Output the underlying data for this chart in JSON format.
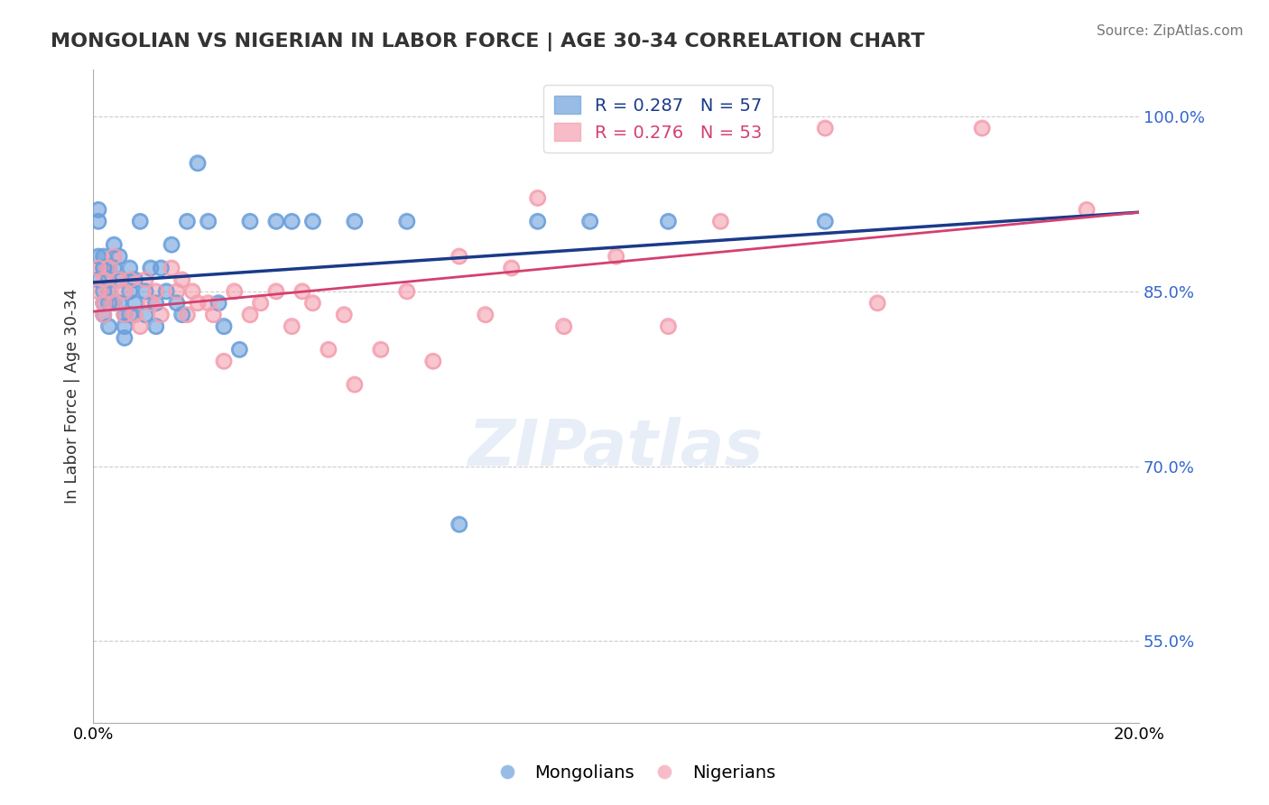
{
  "title": "MONGOLIAN VS NIGERIAN IN LABOR FORCE | AGE 30-34 CORRELATION CHART",
  "source_text": "Source: ZipAtlas.com",
  "ylabel": "In Labor Force | Age 30-34",
  "xlim": [
    0.0,
    0.2
  ],
  "ylim": [
    0.48,
    1.04
  ],
  "yticks": [
    0.55,
    0.7,
    0.85,
    1.0
  ],
  "ytick_labels": [
    "55.0%",
    "70.0%",
    "85.0%",
    "100.0%"
  ],
  "xticks": [
    0.0,
    0.2
  ],
  "xtick_labels": [
    "0.0%",
    "20.0%"
  ],
  "mongolian_color": "#6ca0dc",
  "nigerian_color": "#f4a0b0",
  "mongolian_line_color": "#1a3a8a",
  "nigerian_line_color": "#d44070",
  "R_mongolian": 0.287,
  "N_mongolian": 57,
  "R_nigerian": 0.276,
  "N_nigerian": 53,
  "mongolian_x": [
    0.001,
    0.001,
    0.001,
    0.001,
    0.002,
    0.002,
    0.002,
    0.002,
    0.002,
    0.002,
    0.003,
    0.003,
    0.003,
    0.003,
    0.003,
    0.004,
    0.004,
    0.004,
    0.005,
    0.005,
    0.005,
    0.006,
    0.006,
    0.006,
    0.007,
    0.007,
    0.007,
    0.008,
    0.008,
    0.009,
    0.01,
    0.01,
    0.011,
    0.012,
    0.012,
    0.013,
    0.014,
    0.015,
    0.016,
    0.017,
    0.018,
    0.02,
    0.022,
    0.024,
    0.025,
    0.028,
    0.03,
    0.035,
    0.038,
    0.042,
    0.05,
    0.06,
    0.07,
    0.085,
    0.095,
    0.11,
    0.14
  ],
  "mongolian_y": [
    0.88,
    0.91,
    0.92,
    0.86,
    0.87,
    0.88,
    0.87,
    0.85,
    0.84,
    0.83,
    0.87,
    0.86,
    0.85,
    0.84,
    0.82,
    0.89,
    0.87,
    0.84,
    0.88,
    0.86,
    0.84,
    0.83,
    0.82,
    0.81,
    0.87,
    0.85,
    0.83,
    0.86,
    0.84,
    0.91,
    0.85,
    0.83,
    0.87,
    0.84,
    0.82,
    0.87,
    0.85,
    0.89,
    0.84,
    0.83,
    0.91,
    0.96,
    0.91,
    0.84,
    0.82,
    0.8,
    0.91,
    0.91,
    0.91,
    0.91,
    0.91,
    0.91,
    0.65,
    0.91,
    0.91,
    0.91,
    0.91
  ],
  "nigerian_x": [
    0.001,
    0.001,
    0.002,
    0.002,
    0.002,
    0.003,
    0.003,
    0.004,
    0.004,
    0.005,
    0.006,
    0.006,
    0.007,
    0.008,
    0.009,
    0.01,
    0.011,
    0.012,
    0.013,
    0.015,
    0.016,
    0.017,
    0.018,
    0.019,
    0.02,
    0.022,
    0.023,
    0.025,
    0.027,
    0.03,
    0.032,
    0.035,
    0.038,
    0.04,
    0.042,
    0.045,
    0.048,
    0.05,
    0.055,
    0.06,
    0.065,
    0.07,
    0.075,
    0.08,
    0.085,
    0.09,
    0.1,
    0.11,
    0.12,
    0.14,
    0.15,
    0.17,
    0.19
  ],
  "nigerian_y": [
    0.87,
    0.85,
    0.86,
    0.84,
    0.83,
    0.87,
    0.85,
    0.88,
    0.84,
    0.86,
    0.85,
    0.83,
    0.86,
    0.83,
    0.82,
    0.86,
    0.84,
    0.85,
    0.83,
    0.87,
    0.85,
    0.86,
    0.83,
    0.85,
    0.84,
    0.84,
    0.83,
    0.79,
    0.85,
    0.83,
    0.84,
    0.85,
    0.82,
    0.85,
    0.84,
    0.8,
    0.83,
    0.77,
    0.8,
    0.85,
    0.79,
    0.88,
    0.83,
    0.87,
    0.93,
    0.82,
    0.88,
    0.82,
    0.91,
    0.99,
    0.84,
    0.99,
    0.92
  ],
  "watermark_text": "ZIPatlas",
  "background_color": "#ffffff",
  "grid_color": "#cccccc"
}
